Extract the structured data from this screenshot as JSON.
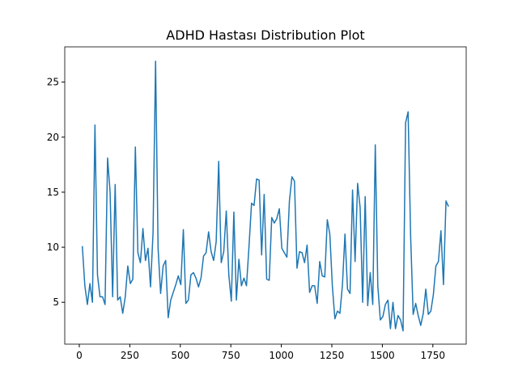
{
  "chart_data": {
    "type": "line",
    "title": "ADHD Hastası Distribution Plot",
    "x": [
      15,
      27.5,
      40,
      52.5,
      65,
      77.5,
      90,
      102.5,
      115,
      127.5,
      140,
      152.5,
      165,
      177.5,
      190,
      202.5,
      215,
      227.5,
      240,
      252.5,
      265,
      277.5,
      290,
      302.5,
      315,
      327.5,
      340,
      352.5,
      365,
      377.5,
      390,
      402.5,
      415,
      427.5,
      440,
      452.5,
      465,
      477.5,
      490,
      502.5,
      515,
      527.5,
      540,
      552.5,
      565,
      577.5,
      590,
      602.5,
      615,
      627.5,
      640,
      652.5,
      665,
      677.5,
      690,
      702.5,
      715,
      727.5,
      740,
      752.5,
      765,
      777.5,
      790,
      802.5,
      815,
      827.5,
      840,
      852.5,
      865,
      877.5,
      890,
      902.5,
      915,
      927.5,
      940,
      952.5,
      965,
      977.5,
      990,
      1002.5,
      1015,
      1027.5,
      1040,
      1052.5,
      1065,
      1077.5,
      1090,
      1102.5,
      1115,
      1127.5,
      1140,
      1152.5,
      1165,
      1177.5,
      1190,
      1202.5,
      1215,
      1227.5,
      1240,
      1252.5,
      1265,
      1277.5,
      1290,
      1302.5,
      1315,
      1327.5,
      1340,
      1352.5,
      1365,
      1377.5,
      1390,
      1402.5,
      1415,
      1427.5,
      1440,
      1452.5,
      1465,
      1477.5,
      1490,
      1502.5,
      1515,
      1527.5,
      1540,
      1552.5,
      1565,
      1577.5,
      1590,
      1602.5,
      1615,
      1627.5,
      1640,
      1652.5,
      1665,
      1677.5,
      1690,
      1702.5,
      1715,
      1727.5,
      1740,
      1752.5,
      1765,
      1777.5,
      1790,
      1802.5,
      1815,
      1827.5
    ],
    "series": [
      {
        "color": "#1f77b4",
        "values": [
          10.1,
          6.5,
          4.8,
          6.7,
          5.0,
          21.1,
          7.5,
          5.5,
          5.5,
          4.8,
          18.1,
          15.0,
          5.5,
          15.7,
          5.2,
          5.5,
          4.0,
          5.5,
          8.3,
          6.7,
          7.1,
          19.1,
          9.5,
          8.6,
          11.7,
          8.8,
          9.9,
          6.4,
          11.3,
          26.9,
          9.9,
          5.8,
          8.3,
          8.8,
          3.6,
          5.2,
          5.9,
          6.6,
          7.4,
          6.6,
          11.6,
          4.9,
          5.2,
          7.5,
          7.7,
          7.2,
          6.4,
          7.2,
          9.2,
          9.5,
          11.4,
          9.6,
          8.8,
          10.5,
          17.8,
          8.6,
          9.6,
          13.3,
          7.5,
          5.1,
          13.2,
          5.2,
          8.9,
          6.5,
          7.2,
          6.5,
          10.1,
          14.0,
          13.8,
          16.2,
          16.1,
          9.3,
          14.8,
          7.1,
          7.0,
          12.7,
          12.2,
          12.6,
          13.5,
          9.9,
          9.5,
          9.1,
          14.2,
          16.4,
          16.0,
          8.1,
          9.6,
          9.5,
          8.6,
          10.2,
          5.9,
          6.5,
          6.5,
          4.9,
          8.7,
          7.4,
          7.3,
          12.5,
          11.2,
          6.5,
          3.5,
          4.2,
          4.0,
          6.6,
          11.2,
          6.2,
          5.8,
          15.2,
          8.7,
          15.8,
          13.6,
          5.0,
          14.6,
          4.7,
          7.7,
          4.8,
          19.3,
          6.5,
          3.4,
          3.7,
          4.8,
          5.2,
          2.6,
          5.0,
          2.6,
          3.8,
          3.4,
          2.4,
          21.3,
          22.3,
          11.0,
          3.9,
          4.9,
          3.8,
          2.9,
          4.0,
          6.2,
          3.9,
          4.2,
          5.7,
          8.3,
          8.7,
          11.5,
          6.6,
          14.2,
          13.7
        ]
      }
    ],
    "xlim": [
      -72,
      1915
    ],
    "xticks": [
      0,
      250,
      500,
      750,
      1000,
      1250,
      1500,
      1750
    ],
    "ylim": [
      1.2,
      28.2
    ],
    "yticks": [
      5,
      10,
      15,
      20,
      25
    ]
  }
}
